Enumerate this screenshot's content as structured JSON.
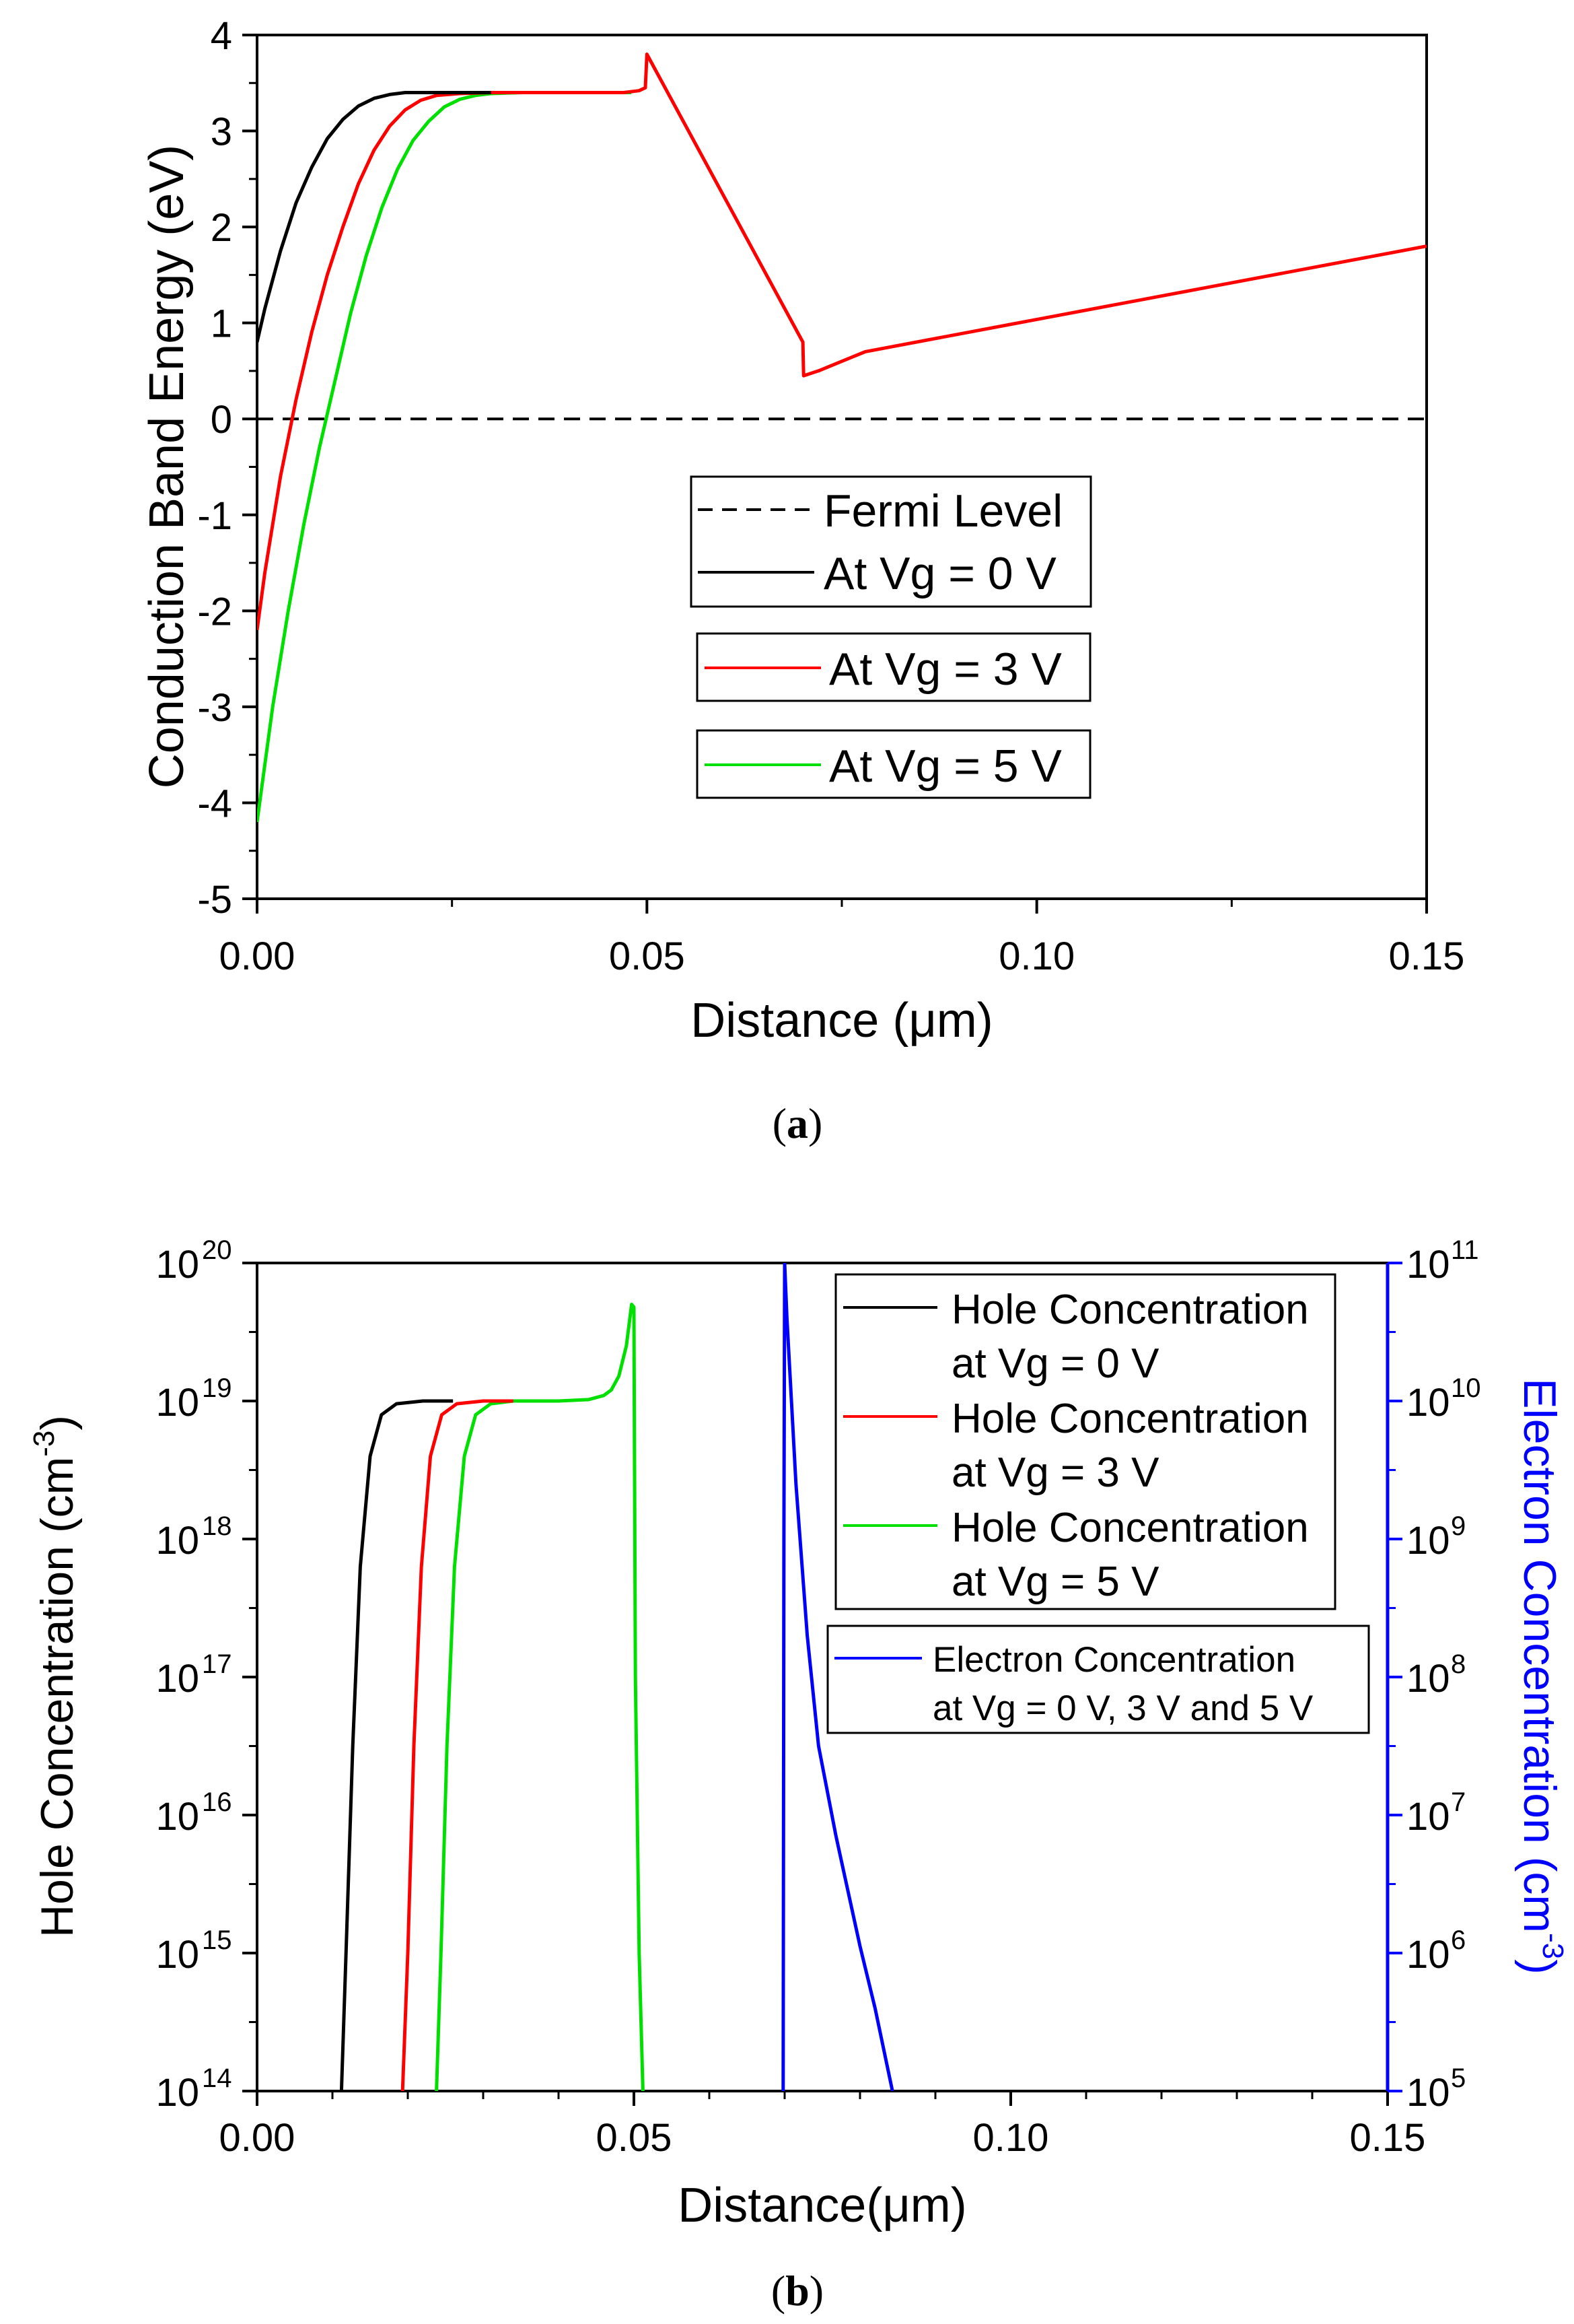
{
  "chart_data": [
    {
      "type": "line",
      "id": "a",
      "caption_label": "a",
      "xlabel": "Distance (μm)",
      "ylabel": "Conduction Band Energy (eV)",
      "xlim": [
        0.0,
        0.15
      ],
      "ylim": [
        -5,
        4
      ],
      "xticks": [
        0.0,
        0.05,
        0.1,
        0.15
      ],
      "xtick_labels": [
        "0.00",
        "0.05",
        "0.10",
        "0.15"
      ],
      "yticks": [
        -5,
        -4,
        -3,
        -2,
        -1,
        0,
        1,
        2,
        3,
        4
      ],
      "ytick_labels": [
        "-5",
        "-4",
        "-3",
        "-2",
        "-1",
        "0",
        "1",
        "2",
        "3",
        "4"
      ],
      "legend": [
        {
          "label": "Fermi Level",
          "color": "#000000",
          "dash": true
        },
        {
          "label": "At Vg = 0 V",
          "color": "#000000"
        },
        {
          "label": "At Vg = 3 V",
          "color": "#ff0000"
        },
        {
          "label": "At Vg = 5 V",
          "color": "#00e000"
        }
      ],
      "series": [
        {
          "name": "Fermi Level",
          "color": "#000000",
          "dash": true,
          "points": [
            [
              0.0,
              0.0
            ],
            [
              0.15,
              0.0
            ]
          ]
        },
        {
          "name": "At Vg = 5 V",
          "color": "#00e000",
          "points": [
            [
              0.0,
              -4.2
            ],
            [
              0.0005,
              -3.9
            ],
            [
              0.002,
              -3.0
            ],
            [
              0.004,
              -2.0
            ],
            [
              0.006,
              -1.1
            ],
            [
              0.008,
              -0.3
            ],
            [
              0.01,
              0.4
            ],
            [
              0.012,
              1.1
            ],
            [
              0.014,
              1.7
            ],
            [
              0.016,
              2.2
            ],
            [
              0.018,
              2.6
            ],
            [
              0.02,
              2.9
            ],
            [
              0.022,
              3.1
            ],
            [
              0.024,
              3.25
            ],
            [
              0.026,
              3.33
            ],
            [
              0.028,
              3.37
            ],
            [
              0.03,
              3.39
            ],
            [
              0.034,
              3.4
            ],
            [
              0.048,
              3.4
            ]
          ]
        },
        {
          "name": "At Vg = 3 V",
          "color": "#ff0000",
          "points": [
            [
              0.0,
              -2.2
            ],
            [
              0.001,
              -1.6
            ],
            [
              0.003,
              -0.6
            ],
            [
              0.005,
              0.2
            ],
            [
              0.007,
              0.9
            ],
            [
              0.009,
              1.5
            ],
            [
              0.011,
              2.0
            ],
            [
              0.013,
              2.45
            ],
            [
              0.015,
              2.8
            ],
            [
              0.017,
              3.05
            ],
            [
              0.019,
              3.22
            ],
            [
              0.021,
              3.32
            ],
            [
              0.023,
              3.37
            ],
            [
              0.026,
              3.39
            ],
            [
              0.03,
              3.4
            ],
            [
              0.047,
              3.4
            ],
            [
              0.049,
              3.42
            ],
            [
              0.0498,
              3.45
            ],
            [
              0.05,
              3.8
            ],
            [
              0.07,
              0.8
            ],
            [
              0.0701,
              0.45
            ],
            [
              0.072,
              0.5
            ],
            [
              0.078,
              0.7
            ],
            [
              0.15,
              1.8
            ]
          ]
        },
        {
          "name": "At Vg = 0 V",
          "color": "#000000",
          "points": [
            [
              0.0,
              0.8
            ],
            [
              0.001,
              1.15
            ],
            [
              0.003,
              1.75
            ],
            [
              0.005,
              2.25
            ],
            [
              0.007,
              2.62
            ],
            [
              0.009,
              2.92
            ],
            [
              0.011,
              3.12
            ],
            [
              0.013,
              3.26
            ],
            [
              0.015,
              3.34
            ],
            [
              0.017,
              3.38
            ],
            [
              0.019,
              3.4
            ],
            [
              0.03,
              3.4
            ]
          ]
        }
      ]
    },
    {
      "type": "line",
      "id": "b",
      "caption_label": "b",
      "log_scale": true,
      "xlabel": "Distance(μm)",
      "ylabel": "Hole Concentration (cm",
      "ylabel_sup": "-3",
      "y2label": "Electron Concentration (cm",
      "y2label_sup": "-3",
      "xlim": [
        0.0,
        0.15
      ],
      "ylim_log10": [
        14,
        20
      ],
      "y2lim_log10": [
        5,
        11
      ],
      "xticks": [
        0.0,
        0.05,
        0.1,
        0.15
      ],
      "xtick_labels": [
        "0.00",
        "0.05",
        "0.10",
        "0.15"
      ],
      "ytick_exponents": [
        "14",
        "15",
        "16",
        "17",
        "18",
        "19",
        "20"
      ],
      "y2tick_exponents": [
        "5",
        "6",
        "7",
        "8",
        "9",
        "10",
        "11"
      ],
      "tick_base": "10",
      "left_color": "#000000",
      "right_color": "#0000ff",
      "legend_holes": [
        {
          "line1": "Hole Concentration",
          "line2": "at Vg = 0 V",
          "color": "#000000"
        },
        {
          "line1": "Hole Concentration",
          "line2": "at Vg = 3 V",
          "color": "#ff0000"
        },
        {
          "line1": "Hole Concentration",
          "line2": "at Vg = 5 V",
          "color": "#00e000"
        }
      ],
      "legend_electron": {
        "line1": "Electron Concentration",
        "line2": "at Vg = 0 V, 3 V and 5 V",
        "color": "#0000ff"
      },
      "series": [
        {
          "name": "Hole Concentration at Vg = 5 V",
          "axis": "left",
          "color": "#00e000",
          "points_log10": [
            [
              0.0238,
              14.0
            ],
            [
              0.0244,
              15.0
            ],
            [
              0.0252,
              16.5
            ],
            [
              0.0262,
              17.8
            ],
            [
              0.0275,
              18.6
            ],
            [
              0.029,
              18.9
            ],
            [
              0.031,
              18.98
            ],
            [
              0.034,
              19.0
            ],
            [
              0.04,
              19.0
            ],
            [
              0.044,
              19.01
            ],
            [
              0.046,
              19.04
            ],
            [
              0.047,
              19.08
            ],
            [
              0.048,
              19.18
            ],
            [
              0.049,
              19.4
            ],
            [
              0.0497,
              19.7
            ],
            [
              0.05,
              19.68
            ],
            [
              0.0502,
              17.0
            ],
            [
              0.0507,
              15.0
            ],
            [
              0.0512,
              14.0
            ]
          ]
        },
        {
          "name": "Hole Concentration at Vg = 3 V",
          "axis": "left",
          "color": "#ff0000",
          "points_log10": [
            [
              0.0193,
              14.0
            ],
            [
              0.02,
              15.0
            ],
            [
              0.0208,
              16.5
            ],
            [
              0.0218,
              17.8
            ],
            [
              0.023,
              18.6
            ],
            [
              0.0245,
              18.9
            ],
            [
              0.0265,
              18.98
            ],
            [
              0.03,
              19.0
            ],
            [
              0.034,
              19.0
            ]
          ]
        },
        {
          "name": "Hole Concentration at Vg = 0 V",
          "axis": "left",
          "color": "#000000",
          "points_log10": [
            [
              0.0112,
              14.0
            ],
            [
              0.0118,
              15.0
            ],
            [
              0.0127,
              16.5
            ],
            [
              0.0137,
              17.8
            ],
            [
              0.015,
              18.6
            ],
            [
              0.0165,
              18.9
            ],
            [
              0.0185,
              18.98
            ],
            [
              0.022,
              19.0
            ],
            [
              0.026,
              19.0
            ]
          ]
        },
        {
          "name": "Electron Concentration at Vg = 0 V, 3 V and 5 V",
          "axis": "right",
          "color": "#0000ff",
          "points_log10": [
            [
              0.0698,
              5.0
            ],
            [
              0.0699,
              9.0
            ],
            [
              0.07,
              11.0
            ],
            [
              0.0703,
              10.6
            ],
            [
              0.0715,
              9.4
            ],
            [
              0.073,
              8.3
            ],
            [
              0.0745,
              7.5
            ],
            [
              0.0768,
              6.85
            ],
            [
              0.078,
              6.55
            ],
            [
              0.08,
              6.05
            ],
            [
              0.082,
              5.6
            ],
            [
              0.0843,
              5.0
            ]
          ]
        }
      ]
    }
  ]
}
